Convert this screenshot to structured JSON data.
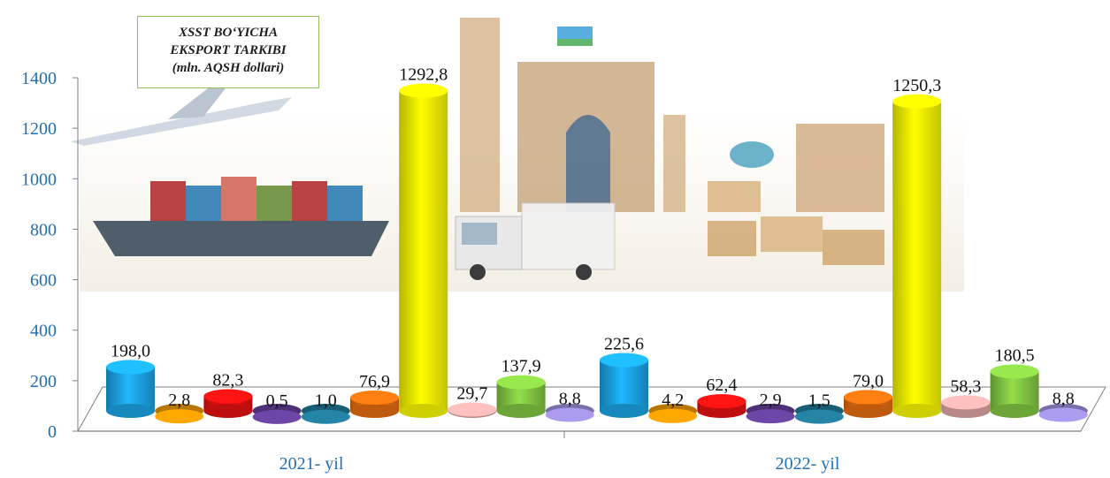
{
  "chart_data": {
    "type": "bar",
    "title_lines": [
      "XSST BO‘YICHA",
      "EKSPORT TARKIBI",
      "(mln. AQSH dollari)"
    ],
    "categories": [
      "2021- yil",
      "2022- yil"
    ],
    "ylim": [
      0,
      1400
    ],
    "yticks": [
      "0",
      "200",
      "400",
      "600",
      "800",
      "1000",
      "1200",
      "1400"
    ],
    "ytick_values": [
      0,
      200,
      400,
      600,
      800,
      1000,
      1200,
      1400
    ],
    "series_colors": [
      "#1aa0e0",
      "#d98c00",
      "#e01010",
      "#5b3a8c",
      "#1f6f8b",
      "#e06a10",
      "#f2f200",
      "#d9a0a0",
      "#7fc241",
      "#8f82c8"
    ],
    "groups": [
      {
        "category": "2021- yil",
        "values": [
          198.0,
          2.8,
          82.3,
          0.5,
          1.0,
          76.9,
          1292.8,
          29.7,
          137.9,
          8.8
        ],
        "labels": [
          "198,0",
          "2,8",
          "82,3",
          "0,5",
          "1,0",
          "76,9",
          "1292,8",
          "29,7",
          "137,9",
          "8,8"
        ]
      },
      {
        "category": "2022- yil",
        "values": [
          225.6,
          4.2,
          62.4,
          2.9,
          1.5,
          79.0,
          1250.3,
          58.3,
          180.5,
          8.8
        ],
        "labels": [
          "225,6",
          "4,2",
          "62,4",
          "2,9",
          "1,5",
          "79,0",
          "1250,3",
          "58,3",
          "180,5",
          "8,8"
        ]
      }
    ],
    "grid": false,
    "axis_color": "#7f7f7f",
    "tick_label_color": "#1f6fb5"
  }
}
